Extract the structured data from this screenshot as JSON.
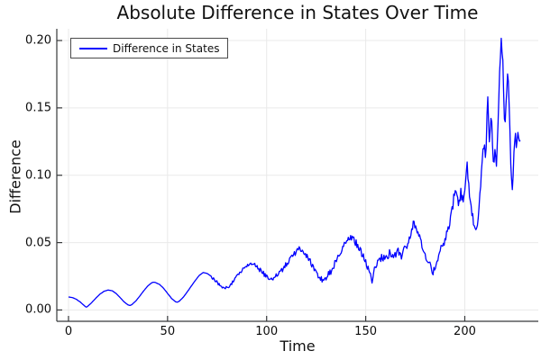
{
  "title": "Absolute Difference in States Over Time",
  "legend": {
    "label": "Difference in States"
  },
  "colors": {
    "line": "#0000ff",
    "grid": "#e9e9e9",
    "axis": "#36383a",
    "background": "#ffffff",
    "text": "#111111",
    "legend_border": "#4a4a4a"
  },
  "chart_data": {
    "type": "line",
    "title": "Absolute Difference in States Over Time",
    "xlabel": "Time",
    "ylabel": "Difference",
    "xlim": [
      -5.9,
      237.1
    ],
    "ylim": [
      -0.0084,
      0.2087
    ],
    "xticks": [
      0,
      50,
      100,
      150,
      200
    ],
    "yticks": [
      0,
      0.05,
      0.1,
      0.15,
      0.2
    ],
    "ytick_labels": [
      "0.00",
      "0.05",
      "0.10",
      "0.15",
      "0.20"
    ],
    "grid": true,
    "legend_position": "top-left",
    "series": [
      {
        "name": "Difference in States",
        "color": "#0000ff",
        "points": [
          [
            0,
            0.0097
          ],
          [
            2,
            0.0092
          ],
          [
            4,
            0.0079
          ],
          [
            6,
            0.0058
          ],
          [
            8,
            0.0032
          ],
          [
            9,
            0.002
          ],
          [
            10,
            0.0031
          ],
          [
            12,
            0.0059
          ],
          [
            14,
            0.0091
          ],
          [
            16,
            0.0119
          ],
          [
            18,
            0.0139
          ],
          [
            20,
            0.0148
          ],
          [
            22,
            0.0143
          ],
          [
            24,
            0.0123
          ],
          [
            26,
            0.0093
          ],
          [
            28,
            0.0061
          ],
          [
            30,
            0.0038
          ],
          [
            31,
            0.0033
          ],
          [
            32,
            0.004
          ],
          [
            34,
            0.0067
          ],
          [
            36,
            0.0104
          ],
          [
            38,
            0.0143
          ],
          [
            40,
            0.0178
          ],
          [
            42,
            0.0202
          ],
          [
            43,
            0.0207
          ],
          [
            44,
            0.0203
          ],
          [
            46,
            0.0189
          ],
          [
            48,
            0.0161
          ],
          [
            50,
            0.0123
          ],
          [
            52,
            0.0086
          ],
          [
            54,
            0.0061
          ],
          [
            55,
            0.0058
          ],
          [
            56,
            0.0066
          ],
          [
            58,
            0.0096
          ],
          [
            60,
            0.0136
          ],
          [
            62,
            0.0178
          ],
          [
            64,
            0.0219
          ],
          [
            66,
            0.0257
          ],
          [
            68,
            0.0278
          ],
          [
            70,
            0.0271
          ],
          [
            72,
            0.0251
          ],
          [
            74,
            0.0221
          ],
          [
            76,
            0.0191
          ],
          [
            78,
            0.0166
          ],
          [
            79,
            0.0158
          ],
          [
            80,
            0.0168
          ],
          [
            82,
            0.0191
          ],
          [
            84,
            0.0229
          ],
          [
            86,
            0.0269
          ],
          [
            88,
            0.0304
          ],
          [
            90,
            0.0331
          ],
          [
            92,
            0.0349
          ],
          [
            94,
            0.0338
          ],
          [
            96,
            0.0311
          ],
          [
            98,
            0.0278
          ],
          [
            100,
            0.0248
          ],
          [
            102,
            0.0228
          ],
          [
            103,
            0.0222
          ],
          [
            104,
            0.0237
          ],
          [
            106,
            0.0267
          ],
          [
            108,
            0.0301
          ],
          [
            110,
            0.0339
          ],
          [
            112,
            0.0379
          ],
          [
            114,
            0.0419
          ],
          [
            116,
            0.0448
          ],
          [
            117,
            0.0458
          ],
          [
            118,
            0.0443
          ],
          [
            120,
            0.0405
          ],
          [
            122,
            0.0359
          ],
          [
            124,
            0.0302
          ],
          [
            126,
            0.0252
          ],
          [
            128,
            0.0223
          ],
          [
            130,
            0.0237
          ],
          [
            132,
            0.0279
          ],
          [
            134,
            0.0331
          ],
          [
            136,
            0.0397
          ],
          [
            138,
            0.0458
          ],
          [
            140,
            0.0509
          ],
          [
            142,
            0.0539
          ],
          [
            144,
            0.0521
          ],
          [
            146,
            0.0477
          ],
          [
            148,
            0.0419
          ],
          [
            150,
            0.0351
          ],
          [
            152,
            0.0278
          ],
          [
            153,
            0.0206
          ],
          [
            154,
            0.0294
          ],
          [
            156,
            0.0347
          ],
          [
            158,
            0.0397
          ],
          [
            160,
            0.0371
          ],
          [
            162,
            0.0419
          ],
          [
            164,
            0.0387
          ],
          [
            166,
            0.0437
          ],
          [
            168,
            0.0401
          ],
          [
            170,
            0.0459
          ],
          [
            172,
            0.0519
          ],
          [
            174,
            0.0641
          ],
          [
            176,
            0.0589
          ],
          [
            178,
            0.0501
          ],
          [
            180,
            0.0419
          ],
          [
            182,
            0.0341
          ],
          [
            184,
            0.0286
          ],
          [
            185,
            0.0304
          ],
          [
            186,
            0.0379
          ],
          [
            188,
            0.0444
          ],
          [
            190,
            0.0519
          ],
          [
            192,
            0.0611
          ],
          [
            194,
            0.0758
          ],
          [
            195,
            0.0918
          ],
          [
            196,
            0.0841
          ],
          [
            197,
            0.0779
          ],
          [
            198,
            0.0879
          ],
          [
            199,
            0.0806
          ],
          [
            200,
            0.0899
          ],
          [
            201,
            0.1098
          ],
          [
            202,
            0.0941
          ],
          [
            203,
            0.0781
          ],
          [
            204,
            0.0696
          ],
          [
            205,
            0.0626
          ],
          [
            206,
            0.0576
          ],
          [
            207,
            0.0711
          ],
          [
            208,
            0.0919
          ],
          [
            209,
            0.1158
          ],
          [
            210,
            0.1229
          ],
          [
            210.6,
            0.1081
          ],
          [
            211.5,
            0.1649
          ],
          [
            212.4,
            0.1261
          ],
          [
            213.4,
            0.1469
          ],
          [
            214.5,
            0.1056
          ],
          [
            215.3,
            0.1179
          ],
          [
            216,
            0.1081
          ],
          [
            216.8,
            0.1391
          ],
          [
            217.6,
            0.1761
          ],
          [
            218.4,
            0.2021
          ],
          [
            219.2,
            0.1849
          ],
          [
            219.8,
            0.1481
          ],
          [
            220.3,
            0.1361
          ],
          [
            221,
            0.1579
          ],
          [
            221.7,
            0.1779
          ],
          [
            222.4,
            0.1541
          ],
          [
            223.3,
            0.1031
          ],
          [
            224,
            0.0881
          ],
          [
            224.8,
            0.1149
          ],
          [
            225.4,
            0.1319
          ],
          [
            226,
            0.1211
          ],
          [
            226.7,
            0.1301
          ],
          [
            227.4,
            0.1236
          ],
          [
            228,
            0.1259
          ]
        ],
        "noise_segments": [
          [
            72,
            96,
            0.0012
          ],
          [
            96,
            130,
            0.002
          ],
          [
            130,
            153,
            0.0028
          ],
          [
            153,
            172,
            0.003
          ],
          [
            172,
            186,
            0.0028
          ],
          [
            186,
            210,
            0.0038
          ],
          [
            210,
            228,
            0.0028
          ]
        ]
      }
    ]
  }
}
